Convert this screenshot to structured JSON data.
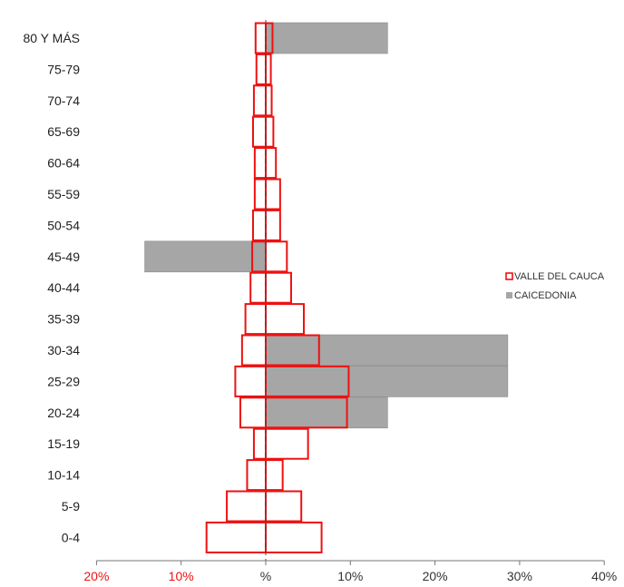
{
  "chart_data": {
    "type": "bar",
    "orientation": "horizontal",
    "layout": "population-pyramid",
    "categories": [
      "0-4",
      "5-9",
      "10-14",
      "15-19",
      "20-24",
      "25-29",
      "30-34",
      "35-39",
      "40-44",
      "45-49",
      "50-54",
      "55-59",
      "60-64",
      "65-69",
      "70-74",
      "75-79",
      "80 Y MÁS"
    ],
    "series": [
      {
        "name": "VALLE DEL CAUCA",
        "style": "outline",
        "color": "#ee1111",
        "left_values": [
          7.0,
          4.6,
          2.2,
          1.4,
          3.0,
          3.6,
          2.8,
          2.4,
          1.8,
          1.6,
          1.5,
          1.3,
          1.3,
          1.5,
          1.4,
          1.1,
          1.2
        ],
        "right_values": [
          6.6,
          4.2,
          2.0,
          5.0,
          9.6,
          9.8,
          6.3,
          4.5,
          3.0,
          2.5,
          1.7,
          1.7,
          1.2,
          0.9,
          0.7,
          0.6,
          0.8
        ]
      },
      {
        "name": "CAICEDONIA",
        "style": "fill",
        "color": "#a6a6a6",
        "left_values": [
          0,
          0,
          0,
          0,
          0,
          0,
          0,
          0,
          0,
          14.3,
          0,
          0,
          0,
          0,
          0,
          0,
          0
        ],
        "right_values": [
          0,
          0,
          0,
          0,
          14.4,
          28.6,
          28.6,
          0,
          0,
          0,
          0,
          0,
          0,
          0,
          0,
          0,
          14.4
        ]
      }
    ],
    "x_ticks": [
      {
        "label": "20%",
        "value": -20,
        "color": "#ee1111"
      },
      {
        "label": "10%",
        "value": -10,
        "color": "#ee1111"
      },
      {
        "label": "%",
        "value": 0,
        "color": "#333333"
      },
      {
        "label": "10%",
        "value": 10,
        "color": "#333333"
      },
      {
        "label": "20%",
        "value": 20,
        "color": "#333333"
      },
      {
        "label": "30%",
        "value": 30,
        "color": "#333333"
      },
      {
        "label": "40%",
        "value": 40,
        "color": "#333333"
      }
    ],
    "xlim": [
      -20,
      40
    ],
    "legend_position": "right",
    "grid": false,
    "title": "",
    "xlabel": "",
    "ylabel": ""
  }
}
